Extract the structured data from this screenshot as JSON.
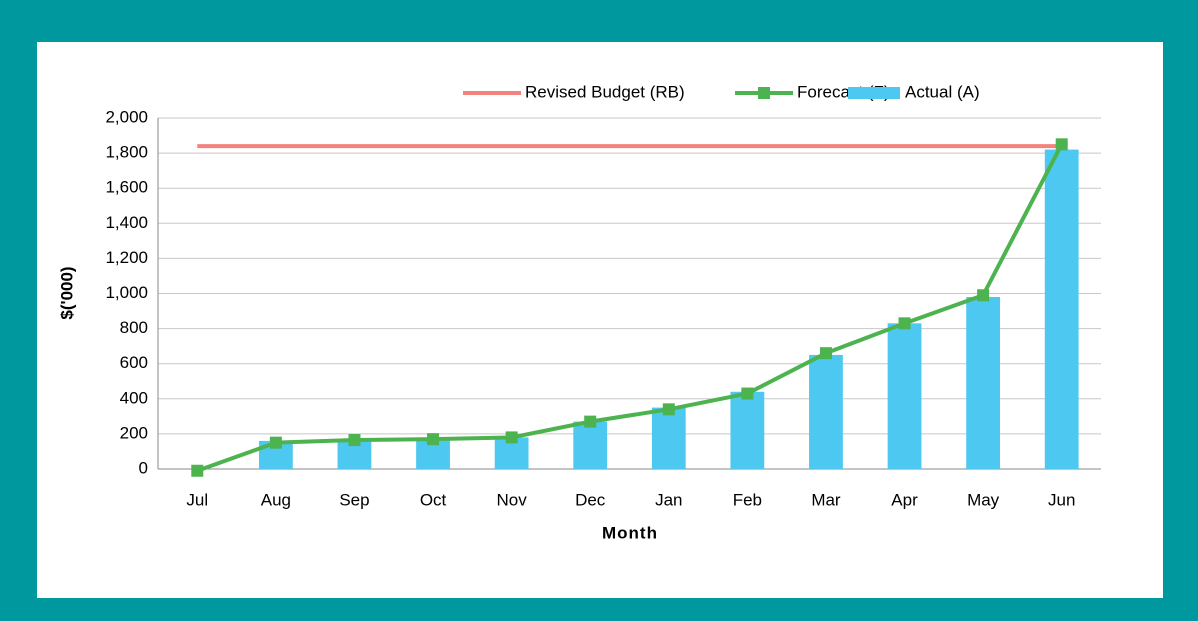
{
  "chart_data": {
    "type": "bar",
    "x_label": "Month",
    "y_label": "$('000)",
    "categories": [
      "Jul",
      "Aug",
      "Sep",
      "Oct",
      "Nov",
      "Dec",
      "Jan",
      "Feb",
      "Mar",
      "Apr",
      "May",
      "Jun"
    ],
    "series": [
      {
        "name": "Revised Budget (RB)",
        "type": "line",
        "color": "#f4837d",
        "values": [
          1840,
          1840,
          1840,
          1840,
          1840,
          1840,
          1840,
          1840,
          1840,
          1840,
          1840,
          1840
        ]
      },
      {
        "name": "Forecast (F)",
        "type": "line",
        "markers": true,
        "color": "#4cb34f",
        "values": [
          -10,
          150,
          165,
          170,
          180,
          270,
          340,
          430,
          660,
          830,
          990,
          1850
        ]
      },
      {
        "name": "Actual (A)",
        "type": "bar",
        "color": "#4dc8f0",
        "values": [
          0,
          160,
          170,
          170,
          180,
          270,
          350,
          440,
          650,
          830,
          980,
          1820
        ]
      }
    ],
    "ylim": [
      0,
      2000
    ],
    "yticks": [
      0,
      200,
      400,
      600,
      800,
      {
        "value": 1000,
        "label": "1,000"
      },
      {
        "value": 1200,
        "label": "1,200"
      },
      {
        "value": 1400,
        "label": "1,400"
      },
      {
        "value": 1600,
        "label": "1,600"
      },
      {
        "value": 1800,
        "label": "1,800"
      },
      {
        "value": 2000,
        "label": "2,000"
      }
    ],
    "grid": true,
    "legend": "top-right"
  }
}
